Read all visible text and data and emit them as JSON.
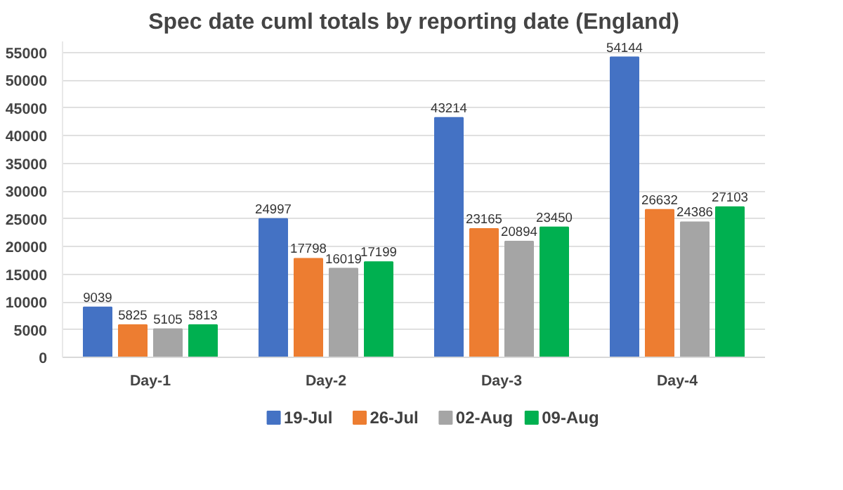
{
  "chart_data": {
    "type": "bar",
    "title": "Spec date cuml totals by reporting date (England)",
    "categories": [
      "Day-1",
      "Day-2",
      "Day-3",
      "Day-4"
    ],
    "series": [
      {
        "name": "19-Jul",
        "color": "#4472c4",
        "values": [
          9039,
          24997,
          43214,
          54144
        ]
      },
      {
        "name": "26-Jul",
        "color": "#ed7d31",
        "values": [
          5825,
          17798,
          23165,
          26632
        ]
      },
      {
        "name": "02-Aug",
        "color": "#a5a5a5",
        "values": [
          5105,
          16019,
          20894,
          24386
        ]
      },
      {
        "name": "09-Aug",
        "color": "#00b050",
        "values": [
          5813,
          17199,
          23450,
          27103
        ]
      }
    ],
    "ylim": [
      0,
      57000
    ],
    "yticks": [
      0,
      5000,
      10000,
      15000,
      20000,
      25000,
      30000,
      35000,
      40000,
      45000,
      50000,
      55000
    ],
    "grid": "y",
    "legend": "bottom",
    "data_labels": true
  }
}
